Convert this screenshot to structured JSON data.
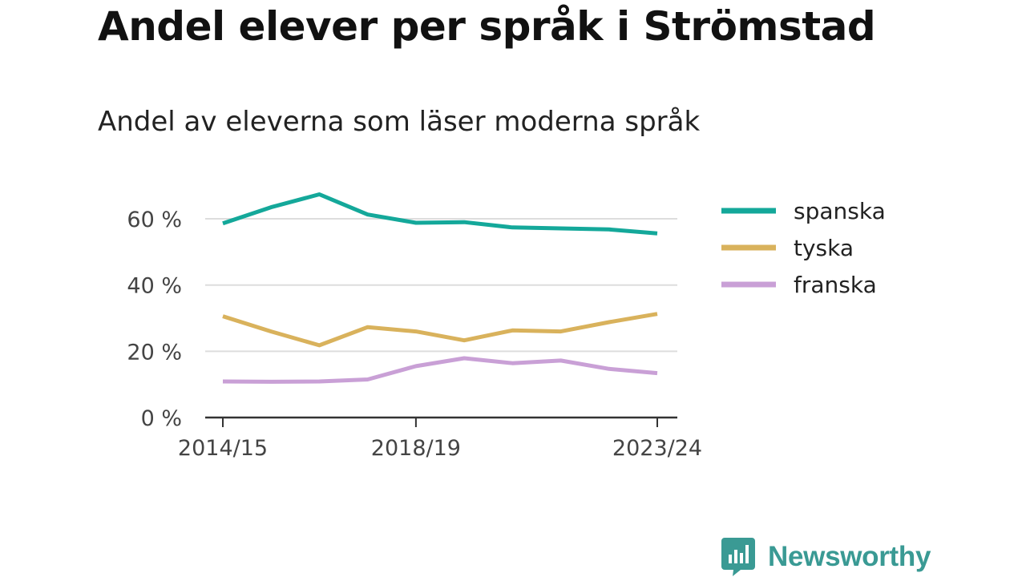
{
  "title": "Andel elever per språk i Strömstad",
  "subtitle": "Andel av eleverna som läser moderna språk",
  "brand": {
    "name": "Newsworthy",
    "icon": "newsworthy-logo-icon",
    "color": "#3a9a94"
  },
  "chart_data": {
    "type": "line",
    "x": [
      "2014/15",
      "2015/16",
      "2016/17",
      "2017/18",
      "2018/19",
      "2019/20",
      "2020/21",
      "2021/22",
      "2022/23",
      "2023/24"
    ],
    "x_tick_labels": [
      "2014/15",
      "2018/19",
      "2023/24"
    ],
    "y_ticks": [
      0,
      20,
      40,
      60
    ],
    "y_tick_labels": [
      "0 %",
      "20 %",
      "40 %",
      "60 %"
    ],
    "ylim": [
      0,
      68
    ],
    "grid": true,
    "legend_position": "right",
    "series": [
      {
        "name": "spanska",
        "color": "#14a89a",
        "values": [
          58.6,
          63.5,
          67.4,
          61.3,
          58.8,
          59.0,
          57.4,
          57.1,
          56.8,
          55.6
        ]
      },
      {
        "name": "tyska",
        "color": "#d9b25c",
        "values": [
          30.6,
          26.0,
          21.8,
          27.3,
          26.0,
          23.3,
          26.3,
          26.0,
          28.8,
          31.3
        ]
      },
      {
        "name": "franska",
        "color": "#c9a0d6",
        "values": [
          10.9,
          10.8,
          10.9,
          11.5,
          15.5,
          17.9,
          16.4,
          17.2,
          14.7,
          13.4
        ]
      }
    ]
  }
}
